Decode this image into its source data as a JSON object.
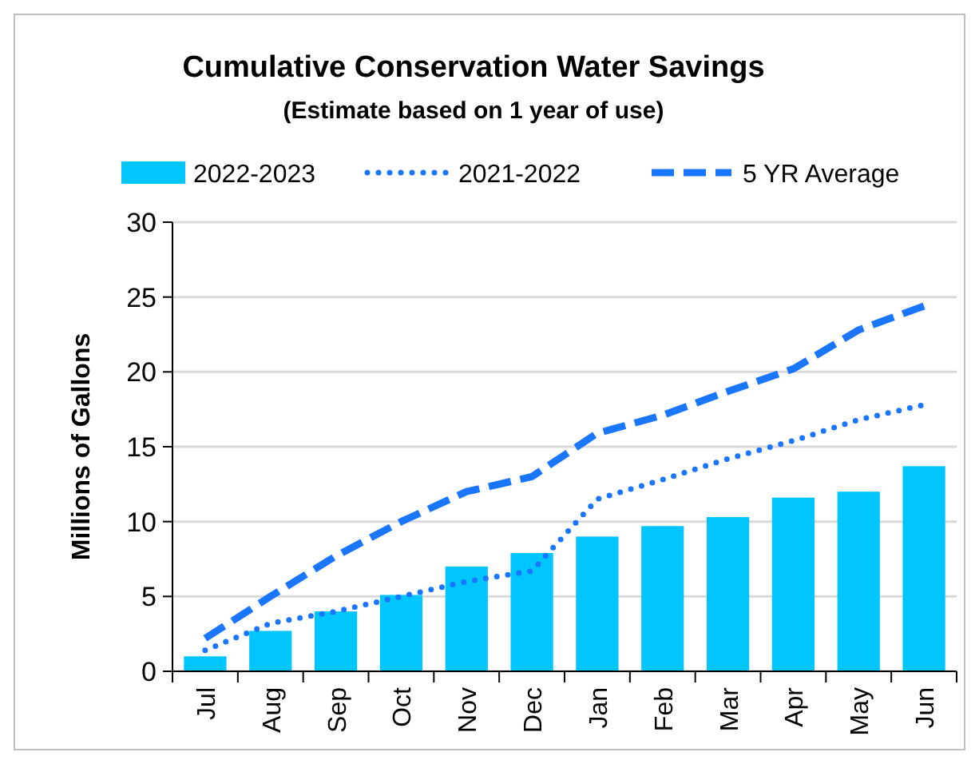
{
  "chart_data": {
    "type": "bar",
    "title": "Cumulative Conservation Water Savings",
    "subtitle": "(Estimate based on 1 year of use)",
    "ylabel": "Millions of Gallons",
    "categories": [
      "Jul",
      "Aug",
      "Sep",
      "Oct",
      "Nov",
      "Dec",
      "Jan",
      "Feb",
      "Mar",
      "Apr",
      "May",
      "Jun"
    ],
    "series": [
      {
        "name": "2022-2023",
        "color": "#00c5ff",
        "values": [
          1.0,
          2.7,
          4.0,
          5.1,
          7.0,
          7.9,
          9.0,
          9.7,
          10.3,
          11.6,
          12.0,
          13.7
        ]
      },
      {
        "name": "2021-2022",
        "type": "line",
        "line_style": "dotted",
        "color": "#1a75ff",
        "values": [
          1.4,
          3.2,
          4.0,
          5.0,
          6.0,
          6.7,
          11.5,
          12.8,
          14.2,
          15.4,
          16.8,
          17.8
        ]
      },
      {
        "name": "5 YR Average",
        "type": "line",
        "line_style": "dashed",
        "color": "#1a75ff",
        "values": [
          2.2,
          5.0,
          7.7,
          10.0,
          12.0,
          13.0,
          15.9,
          17.1,
          18.7,
          20.2,
          22.8,
          24.4
        ]
      }
    ],
    "ylim": [
      0,
      30
    ],
    "yticks": [
      0,
      5,
      10,
      15,
      20,
      25,
      30
    ],
    "grid": "y",
    "legend": "top"
  }
}
